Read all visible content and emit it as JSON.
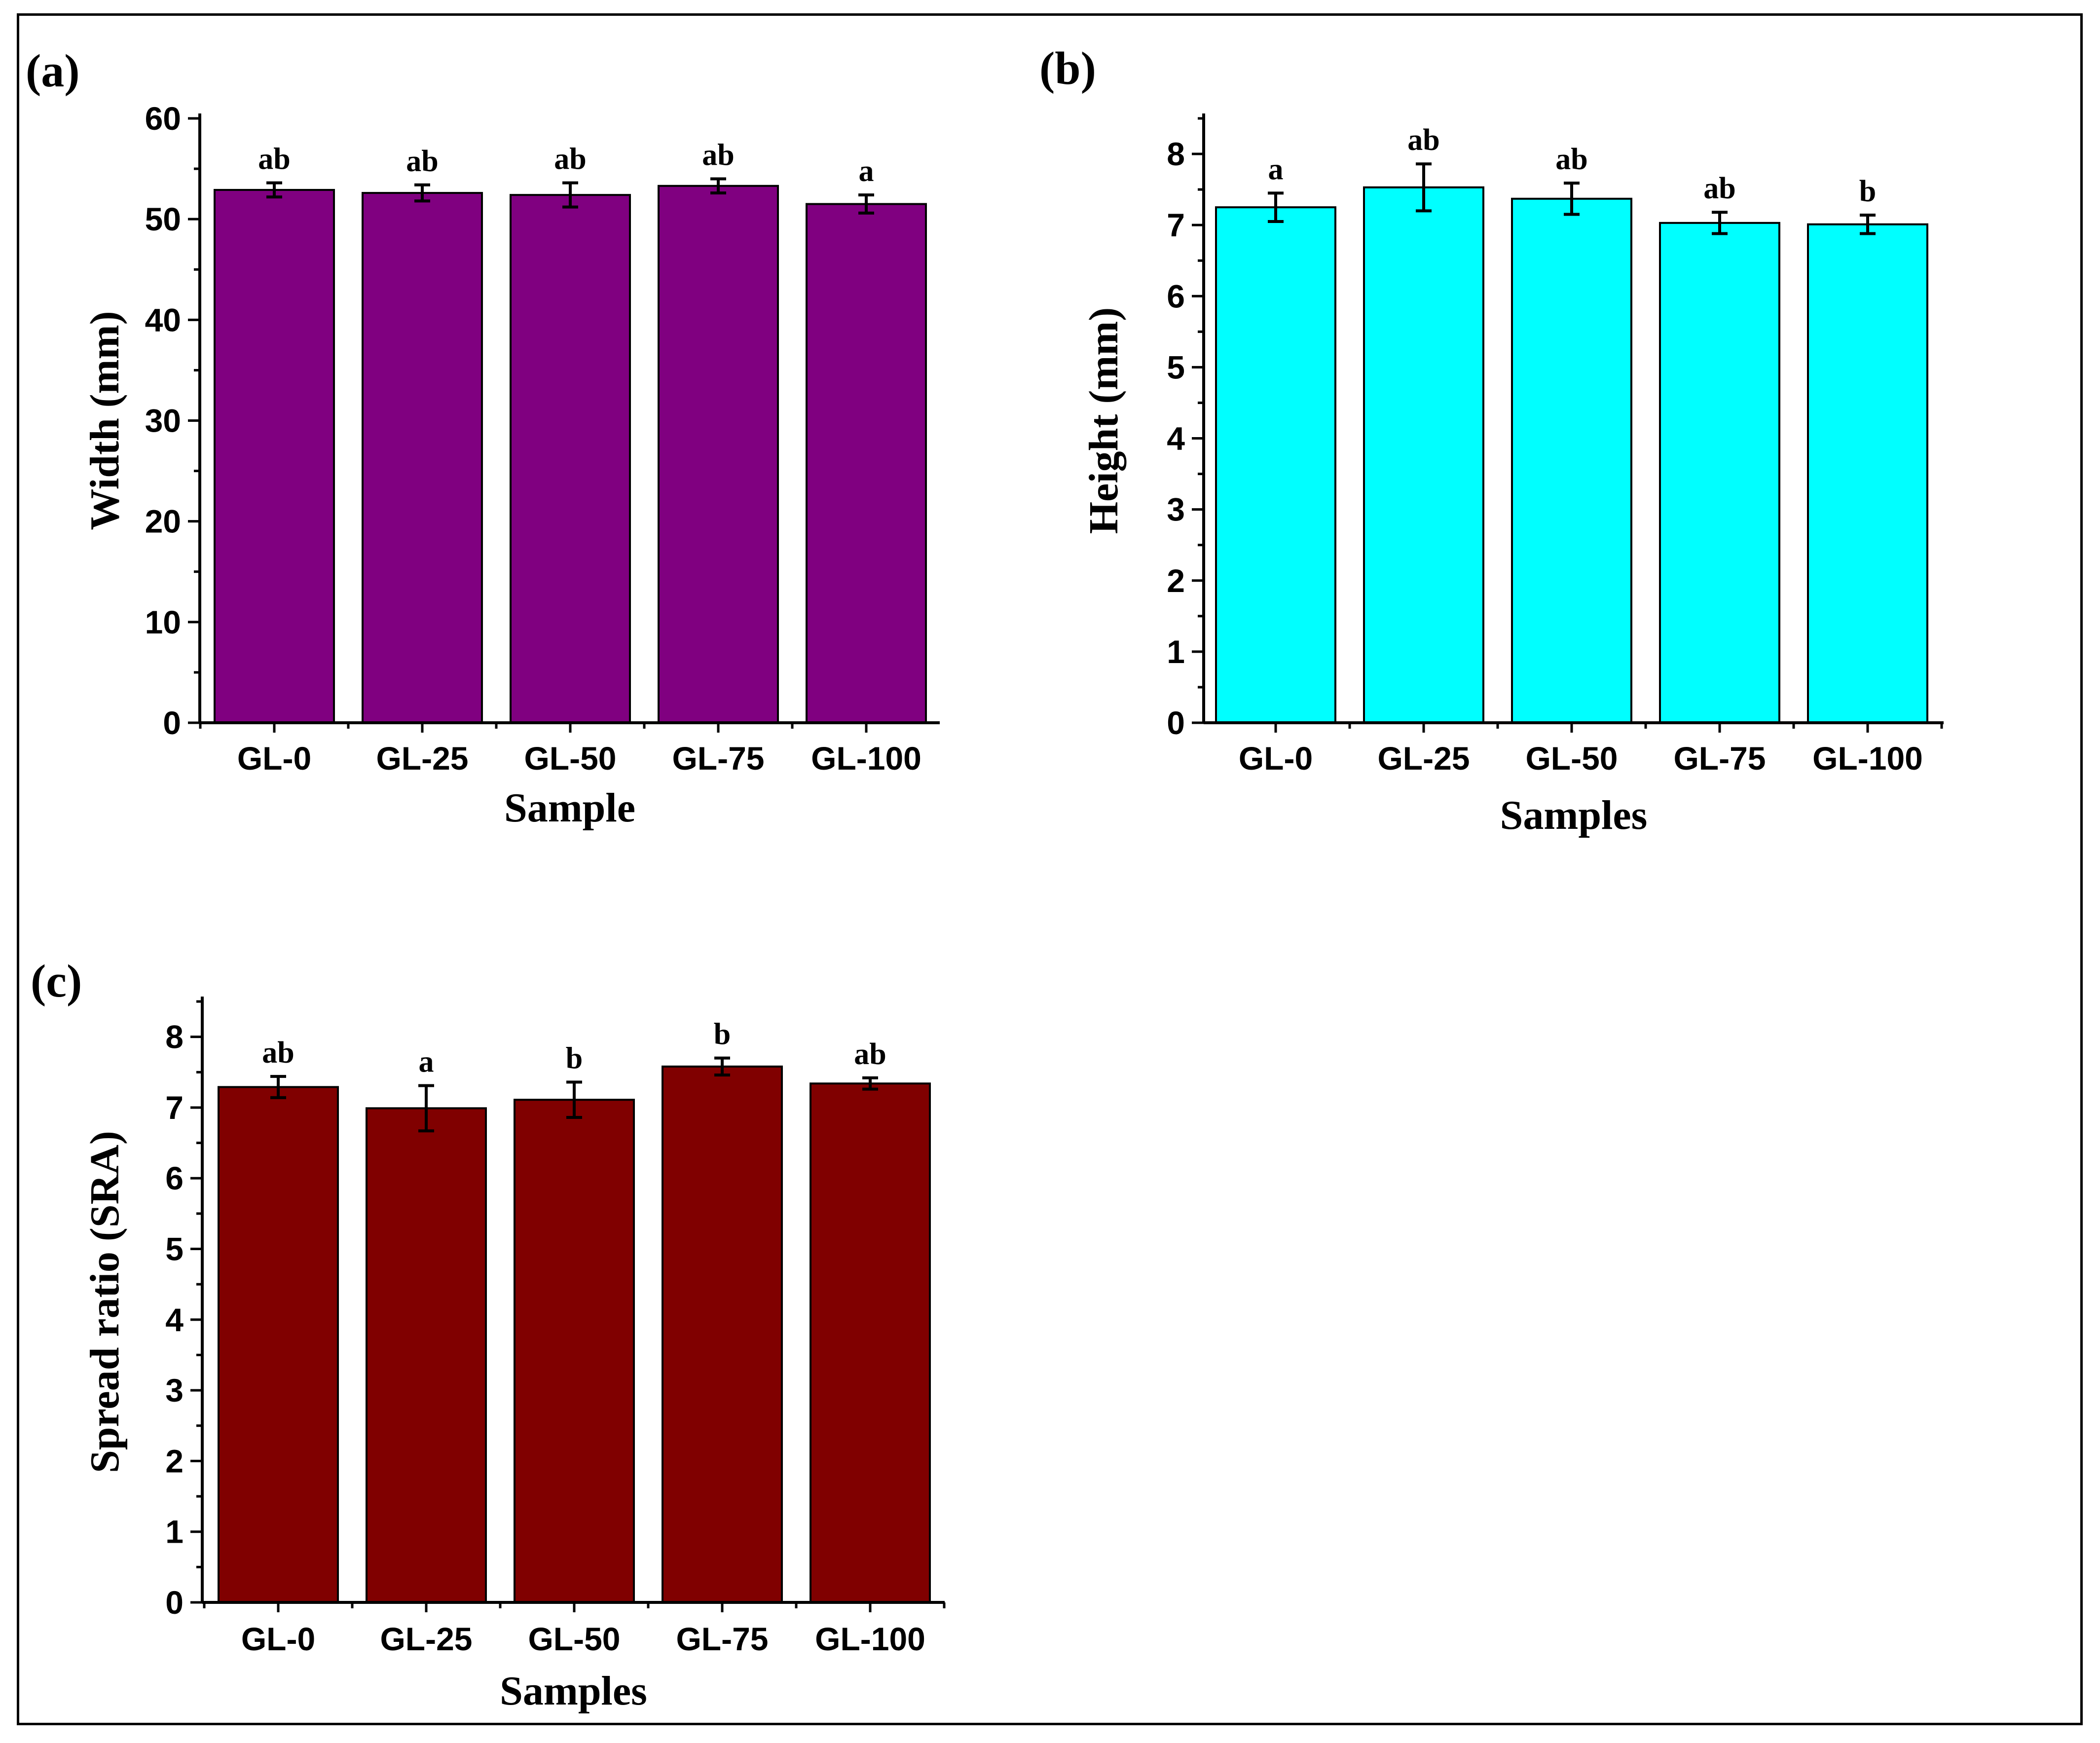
{
  "chart_data": [
    {
      "type": "bar",
      "panel_label": "(a)",
      "categories": [
        "GL-0",
        "GL-25",
        "GL-50",
        "GL-75",
        "GL-100"
      ],
      "values": [
        52.9,
        52.6,
        52.4,
        53.3,
        51.5
      ],
      "errors": [
        0.7,
        0.8,
        1.2,
        0.7,
        0.9
      ],
      "significance": [
        "ab",
        "ab",
        "ab",
        "ab",
        "a"
      ],
      "xlabel": "Sample",
      "ylabel": "Width (mm)",
      "ylim": [
        0,
        60
      ],
      "yticks": [
        0,
        10,
        20,
        30,
        40,
        50,
        60
      ],
      "bar_color": "#800080"
    },
    {
      "type": "bar",
      "panel_label": "(b)",
      "categories": [
        "GL-0",
        "GL-25",
        "GL-50",
        "GL-75",
        "GL-100"
      ],
      "values": [
        7.25,
        7.53,
        7.37,
        7.03,
        7.01
      ],
      "errors": [
        0.2,
        0.33,
        0.22,
        0.15,
        0.13
      ],
      "significance": [
        "a",
        "ab",
        "ab",
        "ab",
        "b"
      ],
      "xlabel": "Samples",
      "ylabel": "Height (mm)",
      "ylim": [
        0,
        8.5
      ],
      "yticks": [
        0,
        1,
        2,
        3,
        4,
        5,
        6,
        7,
        8
      ],
      "bar_color": "#00FFFF"
    },
    {
      "type": "bar",
      "panel_label": "(c)",
      "categories": [
        "GL-0",
        "GL-25",
        "GL-50",
        "GL-75",
        "GL-100"
      ],
      "values": [
        7.29,
        6.99,
        7.11,
        7.58,
        7.34
      ],
      "errors": [
        0.15,
        0.32,
        0.25,
        0.12,
        0.08
      ],
      "significance": [
        "ab",
        "a",
        "b",
        "b",
        "ab"
      ],
      "xlabel": "Samples",
      "ylabel": "Spread ratio (SRA)",
      "ylim": [
        0,
        8.5
      ],
      "yticks": [
        0,
        1,
        2,
        3,
        4,
        5,
        6,
        7,
        8
      ],
      "bar_color": "#800000"
    }
  ]
}
